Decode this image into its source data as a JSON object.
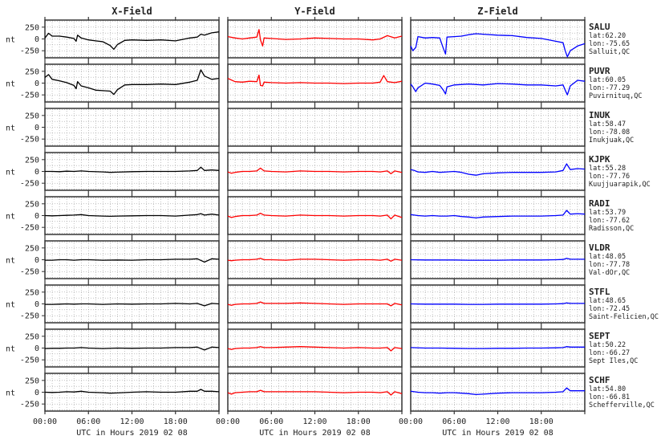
{
  "figure": {
    "columns": [
      {
        "title": "X-Field",
        "color": "#000000"
      },
      {
        "title": "Y-Field",
        "color": "#ff0000"
      },
      {
        "title": "Z-Field",
        "color": "#0000ff"
      }
    ],
    "y_unit": "nt",
    "x_axis_label": "UTC in Hours  2019 02 08",
    "x_ticks": [
      "00:00",
      "06:00",
      "12:00",
      "18:00"
    ],
    "y_ticks": [
      "250",
      "0",
      "-250"
    ]
  },
  "stations": [
    {
      "code": "SALU",
      "lat": "lat:62.20",
      "lon": "lon:-75.65",
      "place": "Salluit,QC"
    },
    {
      "code": "PUVR",
      "lat": "lat:60.05",
      "lon": "lon:-77.29",
      "place": "Puvirnituq,QC"
    },
    {
      "code": "INUK",
      "lat": "lat:58.47",
      "lon": "lon:-78.08",
      "place": "Inukjuak,QC"
    },
    {
      "code": "KJPK",
      "lat": "lat:55.28",
      "lon": "lon:-77.76",
      "place": "Kuujjuarapik,QC"
    },
    {
      "code": "RADI",
      "lat": "lat:53.79",
      "lon": "lon:-77.62",
      "place": "Radisson,QC"
    },
    {
      "code": "VLDR",
      "lat": "lat:48.05",
      "lon": "lon:-77.78",
      "place": "Val-dOr,QC"
    },
    {
      "code": "STFL",
      "lat": "lat:48.65",
      "lon": "lon:-72.45",
      "place": "Saint-Felicien,QC"
    },
    {
      "code": "SEPT",
      "lat": "lat:50.22",
      "lon": "lon:-66.27",
      "place": "Sept Iles,QC"
    },
    {
      "code": "SCHF",
      "lat": "lat:54.80",
      "lon": "lon:-66.81",
      "place": "Schefferville,QC"
    }
  ],
  "chart_data": {
    "type": "line",
    "x_unit": "hours UTC",
    "xlim": [
      0,
      24
    ],
    "ylim": [
      -400,
      400
    ],
    "grid": true,
    "panels": [
      {
        "station": "SALU",
        "field": "X-Field",
        "x": [
          0,
          0.5,
          1,
          2,
          3,
          4,
          4.3,
          4.5,
          5,
          6,
          7,
          8,
          9,
          9.5,
          10,
          11,
          12,
          14,
          16,
          18,
          20,
          21,
          21.5,
          22,
          23,
          24
        ],
        "y": [
          20,
          120,
          60,
          60,
          40,
          10,
          -50,
          80,
          20,
          -20,
          -40,
          -60,
          -140,
          -220,
          -120,
          -30,
          -20,
          -30,
          -20,
          -40,
          20,
          40,
          100,
          80,
          130,
          150
        ]
      },
      {
        "station": "SALU",
        "field": "Y-Field",
        "x": [
          0,
          1,
          2,
          3,
          4,
          4.3,
          4.5,
          4.8,
          5,
          6,
          8,
          10,
          12,
          14,
          16,
          18,
          20,
          21,
          22,
          23,
          24
        ],
        "y": [
          50,
          20,
          0,
          20,
          40,
          200,
          -20,
          -150,
          20,
          10,
          -10,
          0,
          20,
          10,
          0,
          0,
          -20,
          0,
          70,
          20,
          60
        ]
      },
      {
        "station": "SALU",
        "field": "Z-Field",
        "x": [
          0,
          0.3,
          0.7,
          1,
          2,
          3,
          4,
          4.5,
          4.8,
          5,
          6,
          7,
          8,
          9,
          10,
          12,
          14,
          16,
          18,
          20,
          21,
          21.3,
          21.6,
          22,
          23,
          24
        ],
        "y": [
          -150,
          -250,
          -180,
          50,
          20,
          30,
          20,
          -200,
          -320,
          40,
          50,
          60,
          90,
          110,
          100,
          80,
          70,
          30,
          10,
          -50,
          -80,
          -250,
          -380,
          -250,
          -150,
          -100
        ]
      },
      {
        "station": "PUVR",
        "field": "X-Field",
        "x": [
          0,
          0.5,
          1,
          2,
          3,
          4,
          4.3,
          4.5,
          5,
          6,
          7,
          8,
          9,
          9.5,
          10,
          11,
          12,
          14,
          16,
          18,
          20,
          21,
          21.5,
          22,
          23,
          24
        ],
        "y": [
          120,
          180,
          80,
          50,
          10,
          -50,
          -120,
          30,
          -60,
          -100,
          -150,
          -160,
          -170,
          -240,
          -140,
          -40,
          -30,
          -30,
          -20,
          -30,
          20,
          60,
          280,
          150,
          80,
          100
        ]
      },
      {
        "station": "PUVR",
        "field": "Y-Field",
        "x": [
          0,
          1,
          2,
          3,
          4,
          4.3,
          4.5,
          4.8,
          5,
          6,
          8,
          10,
          12,
          14,
          16,
          18,
          20,
          21,
          21.5,
          22,
          23,
          24
        ],
        "y": [
          100,
          30,
          20,
          40,
          30,
          170,
          -50,
          -60,
          20,
          10,
          0,
          10,
          0,
          0,
          -10,
          0,
          0,
          20,
          160,
          30,
          10,
          40
        ]
      },
      {
        "station": "PUVR",
        "field": "Z-Field",
        "x": [
          0,
          0.3,
          0.7,
          1,
          2,
          3,
          4,
          4.5,
          4.8,
          5,
          6,
          8,
          10,
          12,
          14,
          16,
          18,
          20,
          21,
          21.3,
          21.6,
          22,
          23,
          24
        ],
        "y": [
          -20,
          -80,
          -180,
          -100,
          0,
          -20,
          -50,
          -150,
          -230,
          -80,
          -40,
          -20,
          -40,
          -10,
          -20,
          -40,
          -40,
          -60,
          -40,
          -150,
          -250,
          -60,
          60,
          40
        ]
      },
      {
        "station": "KJPK",
        "field": "X-Field",
        "x": [
          0,
          1,
          2,
          3,
          4,
          5,
          6,
          8,
          9,
          10,
          12,
          14,
          16,
          18,
          20,
          21,
          21.5,
          22,
          23,
          24
        ],
        "y": [
          0,
          0,
          -5,
          5,
          0,
          10,
          0,
          -10,
          -20,
          -15,
          -5,
          0,
          0,
          0,
          10,
          20,
          90,
          20,
          30,
          20
        ]
      },
      {
        "station": "KJPK",
        "field": "Y-Field",
        "x": [
          0,
          0.5,
          1,
          2,
          3,
          4,
          4.5,
          5,
          6,
          8,
          10,
          12,
          14,
          16,
          18,
          20,
          21,
          22,
          22.5,
          23,
          24
        ],
        "y": [
          -10,
          -40,
          -20,
          0,
          0,
          10,
          70,
          10,
          0,
          -10,
          10,
          0,
          0,
          -10,
          0,
          0,
          -10,
          10,
          -50,
          10,
          -20
        ]
      },
      {
        "station": "KJPK",
        "field": "Z-Field",
        "x": [
          0,
          0.5,
          1,
          2,
          3,
          4,
          5,
          6,
          7,
          8,
          9,
          10,
          12,
          14,
          16,
          18,
          20,
          21,
          21.5,
          22,
          23,
          24
        ],
        "y": [
          40,
          20,
          -10,
          -20,
          0,
          -20,
          -10,
          0,
          -20,
          -60,
          -80,
          -50,
          -30,
          -20,
          -20,
          -20,
          -10,
          20,
          160,
          40,
          60,
          50
        ]
      },
      {
        "station": "RADI",
        "field": "X-Field",
        "x": [
          0,
          1,
          2,
          3,
          4,
          5,
          6,
          8,
          9,
          10,
          12,
          14,
          16,
          18,
          20,
          21,
          21.5,
          22,
          23,
          24
        ],
        "y": [
          0,
          -5,
          0,
          5,
          10,
          20,
          0,
          -10,
          -15,
          -10,
          -5,
          0,
          0,
          -10,
          10,
          20,
          40,
          10,
          30,
          10
        ]
      },
      {
        "station": "RADI",
        "field": "Y-Field",
        "x": [
          0,
          0.5,
          1,
          2,
          3,
          4,
          4.5,
          5,
          6,
          8,
          10,
          12,
          14,
          16,
          18,
          20,
          21,
          22,
          22.5,
          23,
          24
        ],
        "y": [
          -10,
          -40,
          -20,
          0,
          0,
          10,
          50,
          10,
          0,
          -10,
          10,
          0,
          0,
          -10,
          0,
          0,
          -10,
          10,
          -70,
          10,
          -40
        ]
      },
      {
        "station": "RADI",
        "field": "Z-Field",
        "x": [
          0,
          0.5,
          1,
          2,
          3,
          4,
          5,
          6,
          7,
          8,
          9,
          10,
          12,
          14,
          16,
          18,
          20,
          21,
          21.5,
          22,
          23,
          24
        ],
        "y": [
          20,
          10,
          0,
          -10,
          0,
          -10,
          -10,
          0,
          -20,
          -30,
          -50,
          -30,
          -20,
          -10,
          -10,
          -10,
          0,
          10,
          110,
          30,
          40,
          30
        ]
      },
      {
        "station": "VLDR",
        "field": "X-Field",
        "x": [
          0,
          1,
          2,
          3,
          4,
          5,
          6,
          8,
          10,
          12,
          14,
          16,
          18,
          20,
          21,
          22,
          23,
          24
        ],
        "y": [
          -10,
          -10,
          0,
          0,
          -10,
          0,
          0,
          -10,
          -5,
          -10,
          0,
          0,
          10,
          10,
          20,
          -50,
          20,
          10
        ]
      },
      {
        "station": "VLDR",
        "field": "Y-Field",
        "x": [
          0,
          0.5,
          1,
          2,
          3,
          4,
          4.5,
          5,
          6,
          8,
          10,
          12,
          14,
          16,
          18,
          20,
          21,
          22,
          22.5,
          23,
          24
        ],
        "y": [
          -10,
          -20,
          -10,
          0,
          0,
          10,
          30,
          0,
          0,
          -10,
          10,
          10,
          0,
          -10,
          0,
          0,
          -10,
          10,
          -30,
          10,
          -10
        ]
      },
      {
        "station": "VLDR",
        "field": "Z-Field",
        "x": [
          0,
          2,
          4,
          6,
          8,
          10,
          12,
          14,
          16,
          18,
          20,
          21,
          21.5,
          22,
          23,
          24
        ],
        "y": [
          0,
          -5,
          -5,
          -5,
          -10,
          -10,
          -10,
          -5,
          -5,
          -5,
          0,
          5,
          30,
          10,
          10,
          10
        ]
      },
      {
        "station": "STFL",
        "field": "X-Field",
        "x": [
          0,
          1,
          2,
          3,
          4,
          5,
          6,
          8,
          10,
          12,
          14,
          16,
          18,
          20,
          21,
          22,
          23,
          24
        ],
        "y": [
          -10,
          -10,
          -5,
          0,
          -5,
          0,
          0,
          -10,
          0,
          -5,
          0,
          0,
          10,
          0,
          10,
          -40,
          10,
          0
        ]
      },
      {
        "station": "STFL",
        "field": "Y-Field",
        "x": [
          0,
          0.5,
          1,
          2,
          3,
          4,
          4.5,
          5,
          6,
          8,
          10,
          12,
          14,
          16,
          18,
          20,
          21,
          22,
          22.5,
          23,
          24
        ],
        "y": [
          -10,
          -30,
          -10,
          0,
          0,
          10,
          40,
          10,
          10,
          10,
          20,
          10,
          0,
          -10,
          0,
          0,
          0,
          0,
          -40,
          10,
          -20
        ]
      },
      {
        "station": "STFL",
        "field": "Z-Field",
        "x": [
          0,
          2,
          4,
          6,
          8,
          10,
          12,
          14,
          16,
          18,
          20,
          21,
          21.5,
          22,
          23,
          24
        ],
        "y": [
          0,
          -5,
          -5,
          -5,
          -10,
          -10,
          -5,
          -5,
          -5,
          -5,
          0,
          5,
          20,
          10,
          10,
          10
        ]
      },
      {
        "station": "SEPT",
        "field": "X-Field",
        "x": [
          0,
          1,
          2,
          3,
          4,
          5,
          6,
          8,
          10,
          12,
          14,
          16,
          18,
          20,
          21,
          22,
          23,
          24
        ],
        "y": [
          -10,
          -5,
          -5,
          0,
          0,
          10,
          0,
          -10,
          0,
          -5,
          0,
          0,
          10,
          10,
          20,
          -40,
          20,
          10
        ]
      },
      {
        "station": "SEPT",
        "field": "Y-Field",
        "x": [
          0,
          0.5,
          1,
          2,
          3,
          4,
          4.5,
          5,
          6,
          8,
          10,
          12,
          14,
          16,
          18,
          20,
          21,
          22,
          22.5,
          23,
          24
        ],
        "y": [
          -10,
          -30,
          -10,
          0,
          0,
          10,
          30,
          10,
          10,
          20,
          30,
          20,
          10,
          0,
          10,
          0,
          0,
          10,
          -60,
          10,
          -10
        ]
      },
      {
        "station": "SEPT",
        "field": "Z-Field",
        "x": [
          0,
          2,
          4,
          6,
          8,
          10,
          12,
          14,
          16,
          18,
          20,
          21,
          21.5,
          22,
          23,
          24
        ],
        "y": [
          10,
          0,
          0,
          -5,
          -10,
          -10,
          -5,
          -5,
          0,
          0,
          5,
          10,
          30,
          20,
          20,
          20
        ]
      },
      {
        "station": "SCHF",
        "field": "X-Field",
        "x": [
          0,
          1,
          2,
          3,
          4,
          5,
          6,
          8,
          9,
          10,
          12,
          14,
          16,
          18,
          20,
          21,
          21.5,
          22,
          23,
          24
        ],
        "y": [
          0,
          -5,
          0,
          10,
          5,
          20,
          0,
          -10,
          -20,
          -15,
          0,
          10,
          0,
          0,
          20,
          20,
          60,
          20,
          20,
          10
        ]
      },
      {
        "station": "SCHF",
        "field": "Y-Field",
        "x": [
          0,
          0.5,
          1,
          2,
          3,
          4,
          4.5,
          5,
          6,
          8,
          10,
          12,
          14,
          16,
          18,
          20,
          21,
          22,
          22.5,
          23,
          24
        ],
        "y": [
          -10,
          -40,
          -10,
          0,
          10,
          10,
          40,
          10,
          10,
          10,
          10,
          10,
          0,
          -10,
          0,
          0,
          -10,
          10,
          -60,
          10,
          -30
        ]
      },
      {
        "station": "SCHF",
        "field": "Z-Field",
        "x": [
          0,
          0.5,
          1,
          2,
          3,
          4,
          5,
          6,
          7,
          8,
          9,
          10,
          12,
          14,
          16,
          18,
          20,
          21,
          21.5,
          22,
          23,
          24
        ],
        "y": [
          20,
          10,
          0,
          -10,
          -10,
          -20,
          -10,
          -10,
          -20,
          -30,
          -50,
          -40,
          -20,
          -10,
          -10,
          -10,
          0,
          10,
          90,
          30,
          30,
          30
        ]
      }
    ]
  }
}
